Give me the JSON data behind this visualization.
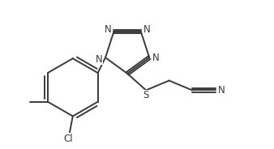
{
  "bg_color": "#ffffff",
  "bond_color": "#3a3a3a",
  "atom_color": "#3a3a3a",
  "line_width": 1.4,
  "font_size": 8.5,
  "figsize": [
    3.38,
    1.84
  ],
  "dpi": 100,
  "xlim": [
    0.0,
    8.5
  ],
  "ylim": [
    0.0,
    4.5
  ]
}
